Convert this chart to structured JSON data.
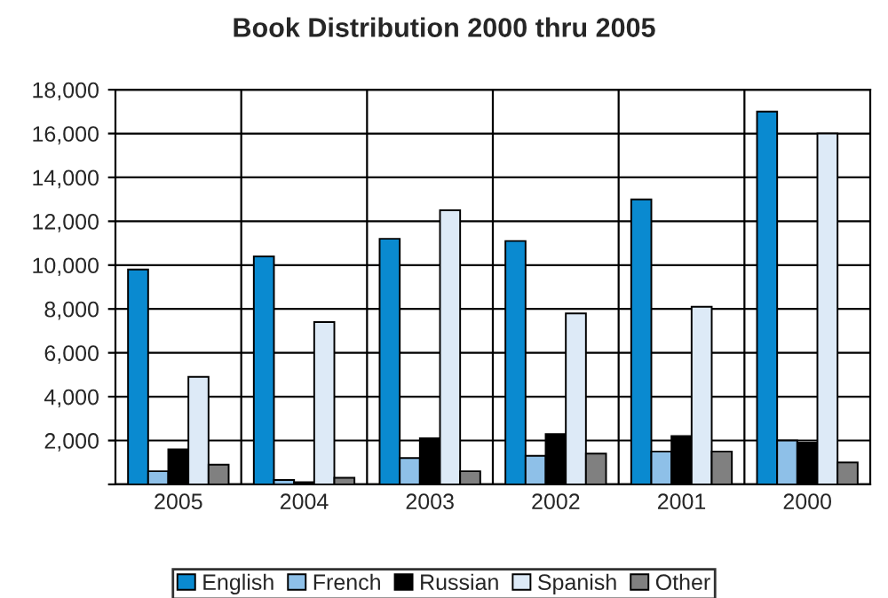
{
  "chart_data": {
    "type": "bar",
    "title": "Book Distribution 2000 thru 2005",
    "categories": [
      "2005",
      "2004",
      "2003",
      "2002",
      "2001",
      "2000"
    ],
    "series": [
      {
        "name": "English",
        "color": "#0a8ad0",
        "values": [
          9800,
          10400,
          11200,
          11100,
          13000,
          17000
        ]
      },
      {
        "name": "French",
        "color": "#8ec0e8",
        "values": [
          600,
          200,
          1200,
          1300,
          1500,
          2000
        ]
      },
      {
        "name": "Russian",
        "color": "#000000",
        "values": [
          1600,
          100,
          2100,
          2300,
          2200,
          1900
        ]
      },
      {
        "name": "Spanish",
        "color": "#ddeaf7",
        "values": [
          4900,
          7400,
          12500,
          7800,
          8100,
          16000
        ]
      },
      {
        "name": "Other",
        "color": "#808080",
        "values": [
          900,
          300,
          600,
          1400,
          1500,
          1000
        ]
      }
    ],
    "ylim": [
      0,
      18000
    ],
    "yticks": [
      {
        "value": 0,
        "label": null
      },
      {
        "value": 2000,
        "label": "2,000"
      },
      {
        "value": 4000,
        "label": "4,000"
      },
      {
        "value": 6000,
        "label": "6,000"
      },
      {
        "value": 8000,
        "label": "8,000"
      },
      {
        "value": 10000,
        "label": "10,000"
      },
      {
        "value": 12000,
        "label": "12,000"
      },
      {
        "value": 14000,
        "label": "14,000"
      },
      {
        "value": 16000,
        "label": "16,000"
      },
      {
        "value": 18000,
        "label": "18,000"
      }
    ],
    "grid": true,
    "legend": "bottom"
  }
}
